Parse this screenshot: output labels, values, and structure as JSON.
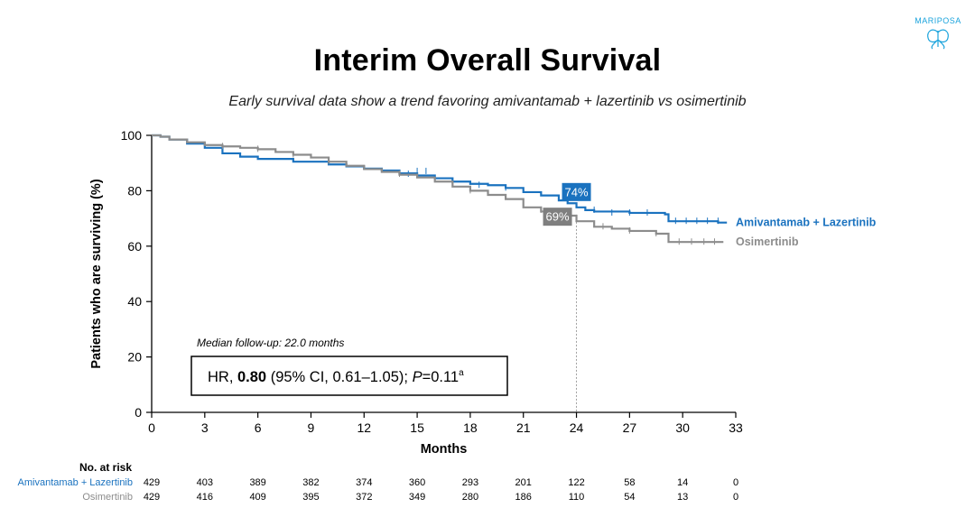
{
  "brand": {
    "name": "MARIPOSA",
    "color": "#1aa3dc"
  },
  "title": "Interim Overall Survival",
  "subtitle": "Early survival data show a trend favoring amivantamab + lazertinib vs osimertinib",
  "annotation": {
    "median_followup": "Median follow-up: 22.0 months",
    "hr_prefix": "HR, ",
    "hr_value": "0.80",
    "hr_ci": " (95% CI, 0.61–1.05); ",
    "p_label": "P",
    "p_value": "=0.11",
    "p_sup": "a"
  },
  "chart_data": {
    "type": "line",
    "subtype": "kaplan-meier",
    "title": "Interim Overall Survival",
    "xlabel": "Months",
    "ylabel": "Patients who are surviving (%)",
    "xlim": [
      0,
      33
    ],
    "ylim": [
      0,
      100
    ],
    "xticks": [
      0,
      3,
      6,
      9,
      12,
      15,
      18,
      21,
      24,
      27,
      30,
      33
    ],
    "yticks": [
      0,
      20,
      40,
      60,
      80,
      100
    ],
    "reference_line_x": 24,
    "series": [
      {
        "name": "Amivantamab + Lazertinib",
        "color": "#1a72bf",
        "landmark": {
          "x": 24,
          "label": "74%"
        },
        "points": [
          [
            0,
            100
          ],
          [
            0.5,
            99.5
          ],
          [
            1,
            98.5
          ],
          [
            2,
            97
          ],
          [
            3,
            95.5
          ],
          [
            4,
            93.5
          ],
          [
            5,
            92.3
          ],
          [
            6,
            91.5
          ],
          [
            8,
            90.5
          ],
          [
            10,
            89.5
          ],
          [
            11,
            88.8
          ],
          [
            12,
            88
          ],
          [
            13,
            87.3
          ],
          [
            14,
            86.3
          ],
          [
            15,
            85.5
          ],
          [
            16,
            84.5
          ],
          [
            17,
            83.3
          ],
          [
            18,
            82.5
          ],
          [
            19,
            82
          ],
          [
            20,
            81
          ],
          [
            21,
            79.5
          ],
          [
            22,
            78.3
          ],
          [
            23,
            76.5
          ],
          [
            23.5,
            75.5
          ],
          [
            24,
            74
          ],
          [
            24.5,
            73
          ],
          [
            25,
            72.5
          ],
          [
            27,
            72
          ],
          [
            29,
            71.5
          ],
          [
            29.2,
            69
          ],
          [
            32,
            68.5
          ],
          [
            32.5,
            68.5
          ]
        ],
        "censor_points": [
          [
            14.5,
            86
          ],
          [
            15,
            87
          ],
          [
            15.5,
            87
          ],
          [
            18.5,
            82
          ],
          [
            20,
            81
          ],
          [
            25,
            73
          ],
          [
            26,
            72
          ],
          [
            27,
            72
          ],
          [
            28,
            72
          ],
          [
            29.6,
            69
          ],
          [
            30.2,
            69
          ],
          [
            30.8,
            69
          ],
          [
            31.4,
            69
          ],
          [
            32,
            69
          ]
        ]
      },
      {
        "name": "Osimertinib",
        "color": "#8c8c8c",
        "landmark": {
          "x": 24,
          "label": "69%"
        },
        "points": [
          [
            0,
            100
          ],
          [
            0.5,
            99.5
          ],
          [
            1,
            98.5
          ],
          [
            2,
            97.5
          ],
          [
            3,
            96.5
          ],
          [
            4,
            96
          ],
          [
            5,
            95.5
          ],
          [
            6,
            95
          ],
          [
            7,
            94
          ],
          [
            8,
            93
          ],
          [
            9,
            92
          ],
          [
            10,
            90.5
          ],
          [
            11,
            89
          ],
          [
            12,
            87.8
          ],
          [
            13,
            86.8
          ],
          [
            14,
            85.8
          ],
          [
            15,
            84.8
          ],
          [
            16,
            83.3
          ],
          [
            17,
            81.5
          ],
          [
            18,
            80
          ],
          [
            19,
            78.5
          ],
          [
            20,
            77
          ],
          [
            21,
            74
          ],
          [
            22,
            72.5
          ],
          [
            23,
            71
          ],
          [
            24,
            69
          ],
          [
            25,
            67
          ],
          [
            26,
            66.3
          ],
          [
            27,
            65.5
          ],
          [
            28.5,
            64.5
          ],
          [
            29.2,
            61.5
          ],
          [
            32.3,
            61.5
          ]
        ],
        "censor_points": [
          [
            4,
            96
          ],
          [
            6,
            95
          ],
          [
            8,
            93
          ],
          [
            10,
            90.5
          ],
          [
            14,
            86
          ],
          [
            18,
            80
          ],
          [
            22,
            73
          ],
          [
            25.5,
            67
          ],
          [
            27,
            65.5
          ],
          [
            28.5,
            64.5
          ],
          [
            29.8,
            61.5
          ],
          [
            30.5,
            61.5
          ],
          [
            31.2,
            61.5
          ],
          [
            31.8,
            61.5
          ]
        ]
      }
    ],
    "risk_table": {
      "header": "No. at risk",
      "timepoints": [
        0,
        3,
        6,
        9,
        12,
        15,
        18,
        21,
        24,
        27,
        30,
        33
      ],
      "rows": [
        {
          "label": "Amivantamab + Lazertinib",
          "color": "#1a72bf",
          "values": [
            "429",
            "403",
            "389",
            "382",
            "374",
            "360",
            "293",
            "201",
            "122",
            "58",
            "14",
            "0"
          ]
        },
        {
          "label": "Osimertinib",
          "color": "#8c8c8c",
          "values": [
            "429",
            "416",
            "409",
            "395",
            "372",
            "349",
            "280",
            "186",
            "110",
            "54",
            "13",
            "0"
          ]
        }
      ]
    }
  }
}
